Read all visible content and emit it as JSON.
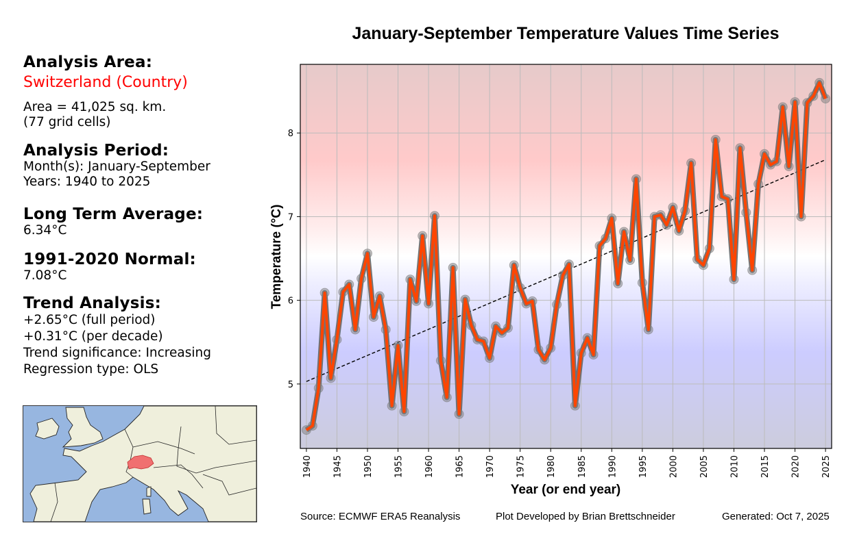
{
  "info_panel": {
    "analysis_area_heading": "Analysis Area:",
    "area_name": "Switzerland (Country)",
    "area_size": "Area = 41,025 sq. km.",
    "grid_cells": "(77 grid cells)",
    "analysis_period_heading": "Analysis Period:",
    "months": "Month(s): January-September",
    "years": "Years: 1940 to 2025",
    "long_term_avg_heading": "Long Term Average:",
    "long_term_avg_value": "6.34°C",
    "normal_heading": "1991-2020 Normal:",
    "normal_value": "7.08°C",
    "trend_heading": "Trend Analysis:",
    "trend_full": "+2.65°C (full period)",
    "trend_decade": "+0.31°C (per decade)",
    "trend_significance": "Trend significance: Increasing",
    "regression_type": "Regression type: OLS",
    "highlight_color": "#ff0000"
  },
  "locator_map": {
    "region": "Western/Central Europe",
    "highlighted_country": "Switzerland",
    "ocean_color": "#97b6e0",
    "land_color": "#efefdc",
    "highlight_color": "#f07070"
  },
  "footer": {
    "source": "Source: ECMWF ERA5 Reanalysis",
    "developer": "Plot Developed by Brian Brettschneider",
    "generated": "Generated: Oct 7, 2025"
  },
  "chart_data": {
    "type": "line",
    "title": "January-September Temperature Values Time Series",
    "xlabel": "Year (or end year)",
    "ylabel": "Temperature (°C)",
    "xlim": [
      1939,
      2026
    ],
    "ylim": [
      4.23,
      8.82
    ],
    "grid": true,
    "x_ticks": [
      1940,
      1945,
      1950,
      1955,
      1960,
      1965,
      1970,
      1975,
      1980,
      1985,
      1990,
      1995,
      2000,
      2005,
      2010,
      2015,
      2020,
      2025
    ],
    "y_ticks": [
      5,
      6,
      7,
      8
    ],
    "background_gradient": "blue (cold, below ~6.4) to white (~6.5) to red (warm, above ~6.6)",
    "series": [
      {
        "name": "Temperature",
        "color": "#ff4500",
        "marker_color": "#808080",
        "x": [
          1940,
          1941,
          1942,
          1943,
          1944,
          1945,
          1946,
          1947,
          1948,
          1949,
          1950,
          1951,
          1952,
          1953,
          1954,
          1955,
          1956,
          1957,
          1958,
          1959,
          1960,
          1961,
          1962,
          1963,
          1964,
          1965,
          1966,
          1967,
          1968,
          1969,
          1970,
          1971,
          1972,
          1973,
          1974,
          1975,
          1976,
          1977,
          1978,
          1979,
          1980,
          1981,
          1982,
          1983,
          1984,
          1985,
          1986,
          1987,
          1988,
          1989,
          1990,
          1991,
          1992,
          1993,
          1994,
          1995,
          1996,
          1997,
          1998,
          1999,
          2000,
          2001,
          2002,
          2003,
          2004,
          2005,
          2006,
          2007,
          2008,
          2009,
          2010,
          2011,
          2012,
          2013,
          2014,
          2015,
          2016,
          2017,
          2018,
          2019,
          2020,
          2021,
          2022,
          2023,
          2024,
          2025
        ],
        "values": [
          4.45,
          4.5,
          4.95,
          6.09,
          5.07,
          5.53,
          6.1,
          6.19,
          5.65,
          6.26,
          6.56,
          5.8,
          6.05,
          5.65,
          4.74,
          5.46,
          4.67,
          6.25,
          5.99,
          6.77,
          5.96,
          7.01,
          5.28,
          4.84,
          6.39,
          4.64,
          6.01,
          5.7,
          5.53,
          5.51,
          5.31,
          5.69,
          5.61,
          5.67,
          6.42,
          6.15,
          5.96,
          5.99,
          5.41,
          5.29,
          5.43,
          5.95,
          6.3,
          6.43,
          4.74,
          5.37,
          5.55,
          5.35,
          6.65,
          6.74,
          6.98,
          6.2,
          6.82,
          6.48,
          7.45,
          6.21,
          5.65,
          7.0,
          7.02,
          6.9,
          7.11,
          6.83,
          7.07,
          7.64,
          6.49,
          6.42,
          6.62,
          7.92,
          7.24,
          7.21,
          6.25,
          7.82,
          7.05,
          6.36,
          7.39,
          7.75,
          7.62,
          7.66,
          8.31,
          7.6,
          8.37,
          7.0,
          8.36,
          8.44,
          8.6,
          8.41
        ]
      },
      {
        "name": "OLS trend",
        "style": "dashed",
        "color": "#000000",
        "x": [
          1940,
          2025
        ],
        "values": [
          5.03,
          7.68
        ]
      }
    ]
  }
}
